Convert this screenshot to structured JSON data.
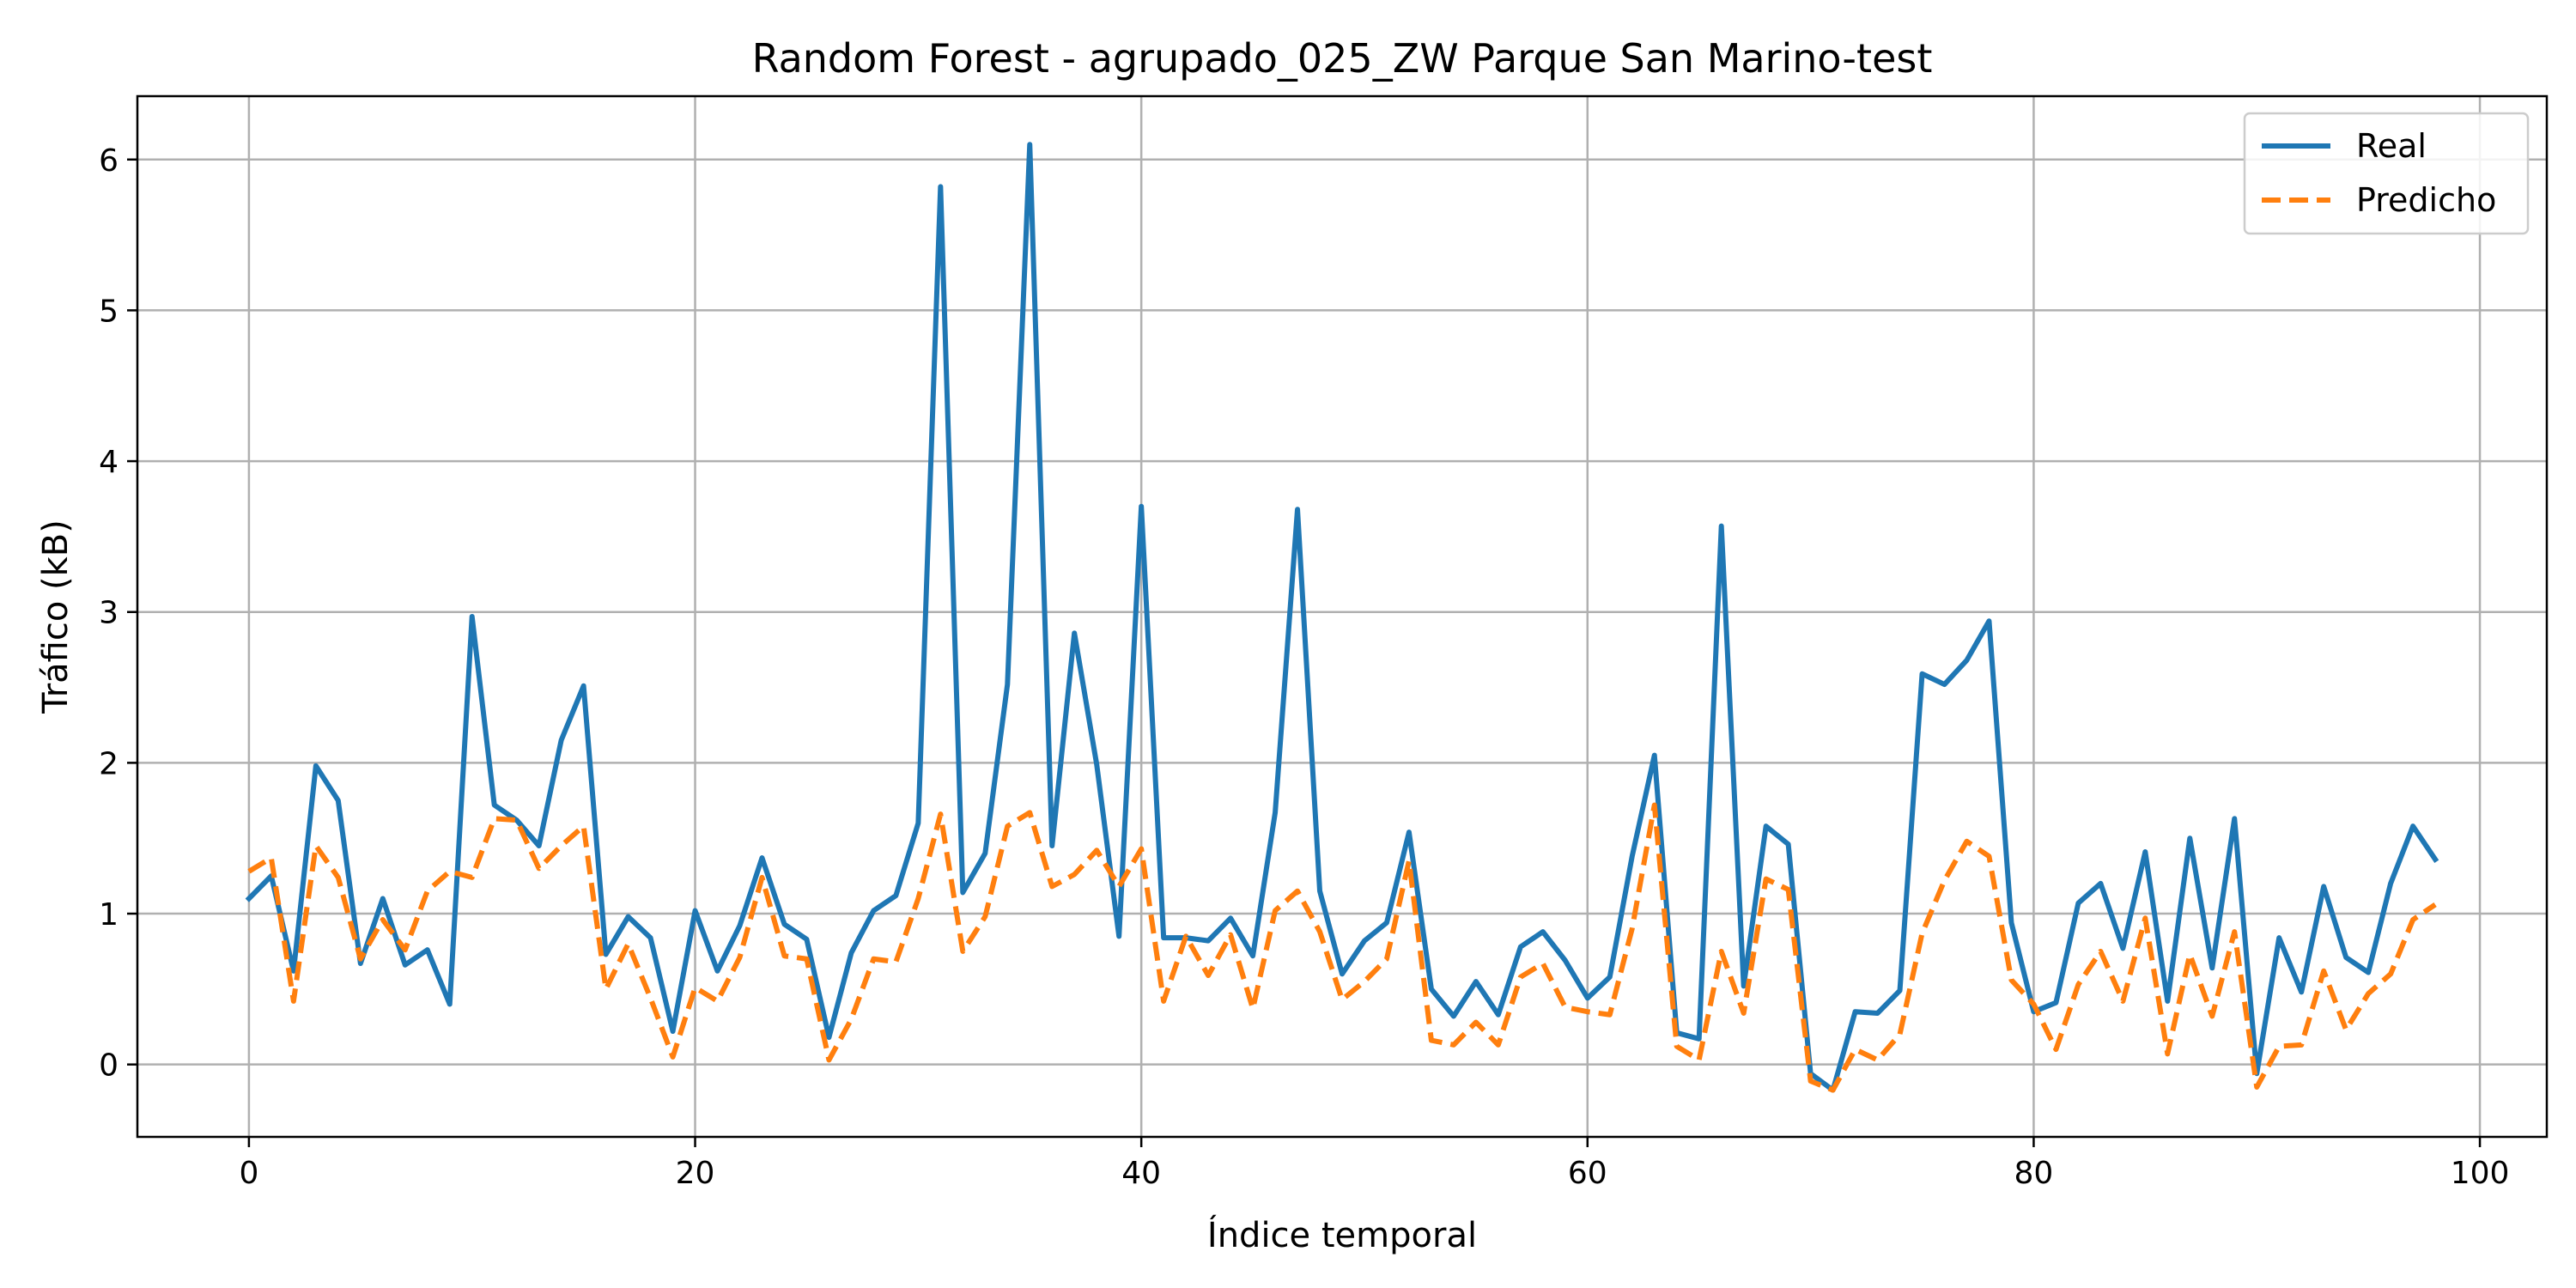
{
  "chart_data": {
    "type": "line",
    "title": "Random Forest - agrupado_025_ZW Parque San Marino-test",
    "xlabel": "Índice temporal",
    "ylabel": "Tráfico (kB)",
    "xlim": [
      -5,
      103
    ],
    "ylim": [
      -0.48,
      6.42
    ],
    "xticks": [
      0,
      20,
      40,
      60,
      80,
      100
    ],
    "yticks": [
      0,
      1,
      2,
      3,
      4,
      5,
      6
    ],
    "grid": true,
    "legend_position": "top-right",
    "series": [
      {
        "name": "Real",
        "color": "#1f77b4",
        "style": "solid",
        "values": [
          1.1,
          1.25,
          0.62,
          1.98,
          1.75,
          0.67,
          1.1,
          0.66,
          0.76,
          0.4,
          2.97,
          1.72,
          1.62,
          1.45,
          2.15,
          2.51,
          0.73,
          0.98,
          0.84,
          0.22,
          1.02,
          0.62,
          0.92,
          1.37,
          0.93,
          0.83,
          0.18,
          0.74,
          1.02,
          1.12,
          1.6,
          5.82,
          1.14,
          1.4,
          2.52,
          6.1,
          1.45,
          2.86,
          1.99,
          0.85,
          3.7,
          0.84,
          0.84,
          0.82,
          0.97,
          0.72,
          1.67,
          3.68,
          1.15,
          0.6,
          0.82,
          0.94,
          1.54,
          0.5,
          0.32,
          0.55,
          0.33,
          0.78,
          0.88,
          0.69,
          0.44,
          0.58,
          1.38,
          2.05,
          0.21,
          0.17,
          3.57,
          0.52,
          1.58,
          1.46,
          -0.06,
          -0.17,
          0.35,
          0.34,
          0.49,
          2.59,
          2.52,
          2.68,
          2.94,
          0.94,
          0.35,
          0.41,
          1.07,
          1.2,
          0.77,
          1.41,
          0.42,
          1.5,
          0.64,
          1.63,
          -0.06,
          0.84,
          0.48,
          1.18,
          0.71,
          0.61,
          1.2,
          1.58,
          1.36
        ]
      },
      {
        "name": "Predicho",
        "color": "#ff7f0e",
        "style": "dashed",
        "values": [
          1.28,
          1.37,
          0.42,
          1.45,
          1.24,
          0.7,
          0.96,
          0.76,
          1.15,
          1.28,
          1.24,
          1.63,
          1.62,
          1.3,
          1.45,
          1.58,
          0.5,
          0.8,
          0.44,
          0.05,
          0.51,
          0.42,
          0.71,
          1.24,
          0.72,
          0.7,
          0.03,
          0.3,
          0.7,
          0.68,
          1.1,
          1.66,
          0.75,
          0.98,
          1.58,
          1.67,
          1.18,
          1.26,
          1.42,
          1.18,
          1.43,
          0.42,
          0.85,
          0.59,
          0.86,
          0.37,
          1.02,
          1.15,
          0.88,
          0.43,
          0.55,
          0.7,
          1.35,
          0.16,
          0.13,
          0.28,
          0.13,
          0.58,
          0.67,
          0.38,
          0.35,
          0.33,
          0.9,
          1.72,
          0.12,
          0.03,
          0.75,
          0.34,
          1.23,
          1.16,
          -0.11,
          -0.17,
          0.1,
          0.03,
          0.2,
          0.87,
          1.22,
          1.48,
          1.38,
          0.56,
          0.4,
          0.1,
          0.53,
          0.75,
          0.42,
          0.97,
          0.07,
          0.73,
          0.32,
          0.88,
          -0.15,
          0.12,
          0.13,
          0.62,
          0.23,
          0.47,
          0.6,
          0.96,
          1.06
        ]
      }
    ]
  }
}
